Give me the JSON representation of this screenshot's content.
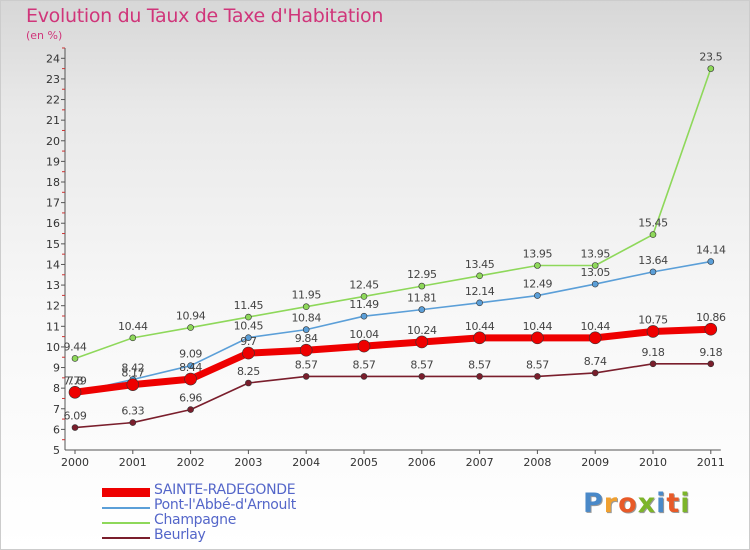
{
  "title": "Evolution du Taux de Taxe d'Habitation",
  "subtitle": "(en %)",
  "logo": {
    "text": "Proxiti",
    "letter_colors": [
      "#4a89c8",
      "#f0a030",
      "#e85a28",
      "#7db52a",
      "#4a89c8",
      "#e85a28",
      "#7db52a"
    ]
  },
  "chart_data": {
    "type": "line",
    "x": [
      "2000",
      "2001",
      "2002",
      "2003",
      "2004",
      "2005",
      "2006",
      "2007",
      "2008",
      "2009",
      "2010",
      "2011"
    ],
    "ylim": [
      5,
      24.5
    ],
    "yticks": [
      "5",
      "6",
      "7",
      "8",
      "9",
      "10",
      "11",
      "12",
      "13",
      "14",
      "15",
      "16",
      "17",
      "18",
      "19",
      "20",
      "21",
      "22",
      "23",
      "24"
    ],
    "grid": false,
    "legend_position": "bottom-left",
    "series": [
      {
        "name": "Beurlay",
        "color": "#7a1e2c",
        "values": [
          6.09,
          6.33,
          6.96,
          8.25,
          8.57,
          8.57,
          8.57,
          8.57,
          8.57,
          8.74,
          9.18,
          9.18
        ],
        "labels": [
          "6.09",
          "6.33",
          "6.96",
          "8.25",
          "8.57",
          "8.57",
          "8.57",
          "8.57",
          "8.57",
          "8.74",
          "9.18",
          "9.18"
        ]
      },
      {
        "name": "Champagne",
        "color": "#8ed85a",
        "values": [
          9.44,
          10.44,
          10.94,
          11.45,
          11.95,
          12.45,
          12.95,
          13.45,
          13.95,
          13.95,
          15.45,
          23.5
        ],
        "labels": [
          "9.44",
          "10.44",
          "10.94",
          "11.45",
          "11.95",
          "12.45",
          "12.95",
          "13.45",
          "13.95",
          "13.95",
          "15.45",
          "23.5"
        ]
      },
      {
        "name": "Pont-l'Abbé-d'Arnoult",
        "color": "#5b9fd8",
        "values": [
          7.79,
          8.42,
          9.09,
          10.45,
          10.84,
          11.49,
          11.81,
          12.14,
          12.49,
          13.05,
          13.64,
          14.14
        ],
        "labels": [
          "7.79",
          "8.42",
          "9.09",
          "10.45",
          "10.84",
          "11.49",
          "11.81",
          "12.14",
          "12.49",
          "13.05",
          "13.64",
          "14.14"
        ]
      },
      {
        "name": "SAINTE-RADEGONDE",
        "color": "#ee0000",
        "values": [
          7.8,
          8.17,
          8.44,
          9.7,
          9.84,
          10.04,
          10.24,
          10.44,
          10.44,
          10.44,
          10.75,
          10.86
        ],
        "labels": [
          "7.8",
          "8.17",
          "8.44",
          "9.7",
          "9.84",
          "10.04",
          "10.24",
          "10.44",
          "10.44",
          "10.44",
          "10.75",
          "10.86"
        ]
      }
    ],
    "legend_order": [
      "SAINTE-RADEGONDE",
      "Pont-l'Abbé-d'Arnoult",
      "Champagne",
      "Beurlay"
    ]
  }
}
